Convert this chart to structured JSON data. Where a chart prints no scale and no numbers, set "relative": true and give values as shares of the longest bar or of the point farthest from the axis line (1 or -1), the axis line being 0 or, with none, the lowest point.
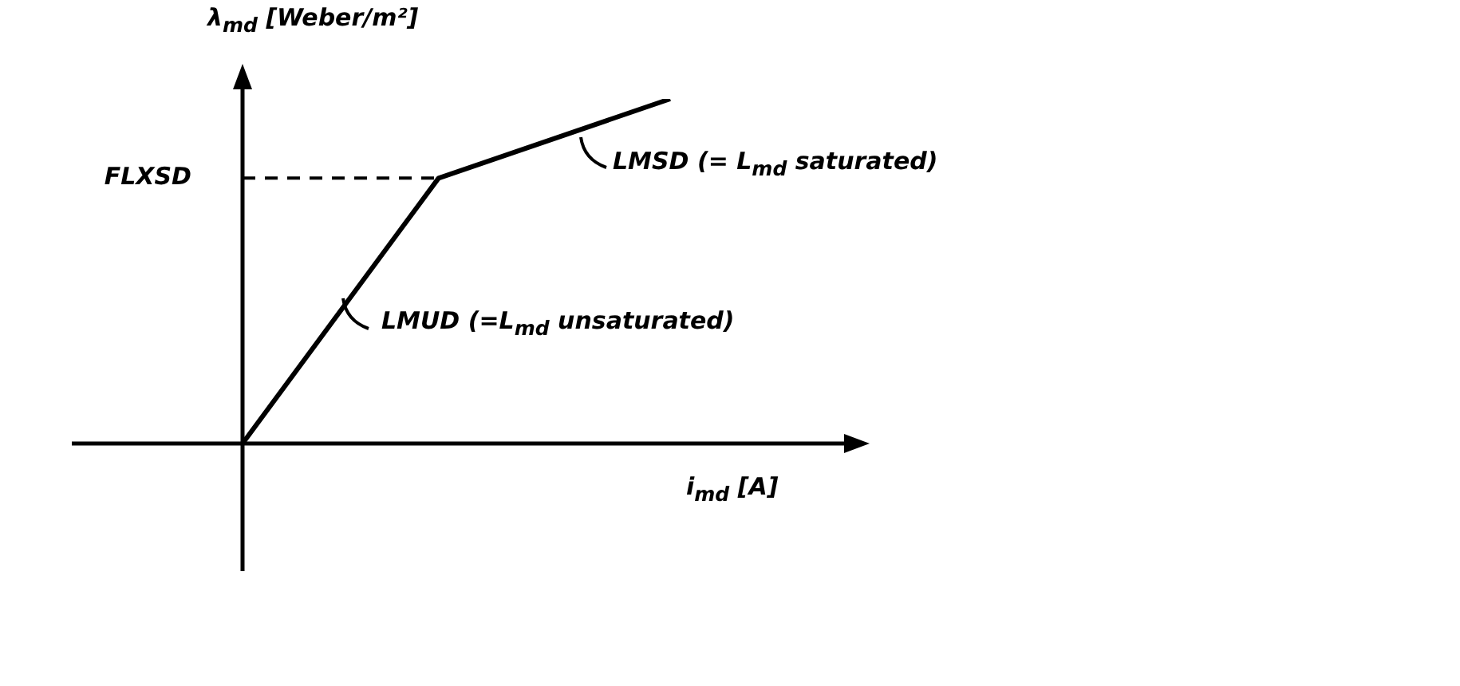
{
  "chart_data": {
    "type": "line",
    "relative": true,
    "xlabel": "i$_{md}$ [A]",
    "ylabel": "λ$_{md}$ [Weber/m²]",
    "categories": [
      null,
      null,
      null,
      null,
      null,
      null,
      null,
      null,
      null,
      null,
      null,
      null,
      null,
      null,
      null,
      null,
      null,
      null,
      null,
      null,
      null,
      null,
      null,
      null,
      null
    ],
    "series": [
      {
        "color": "#000000",
        "values": [
          0,
          null,
          null,
          null,
          null,
          null,
          null,
          null,
          null,
          null,
          null,
          0.77,
          null,
          null,
          null,
          null,
          null,
          null,
          null,
          null,
          null,
          null,
          null,
          null,
          1
        ]
      }
    ],
    "ref_lines": [
      {
        "axis": "y",
        "value": 0.77,
        "label": "FLXSD",
        "line_style": "dashed"
      }
    ],
    "annotations": [
      "LMSD (= L$_{md}$ saturated)",
      "LMUD (=L$_{md}$ unsaturated)"
    ],
    "marker": "none",
    "legend": false
  }
}
